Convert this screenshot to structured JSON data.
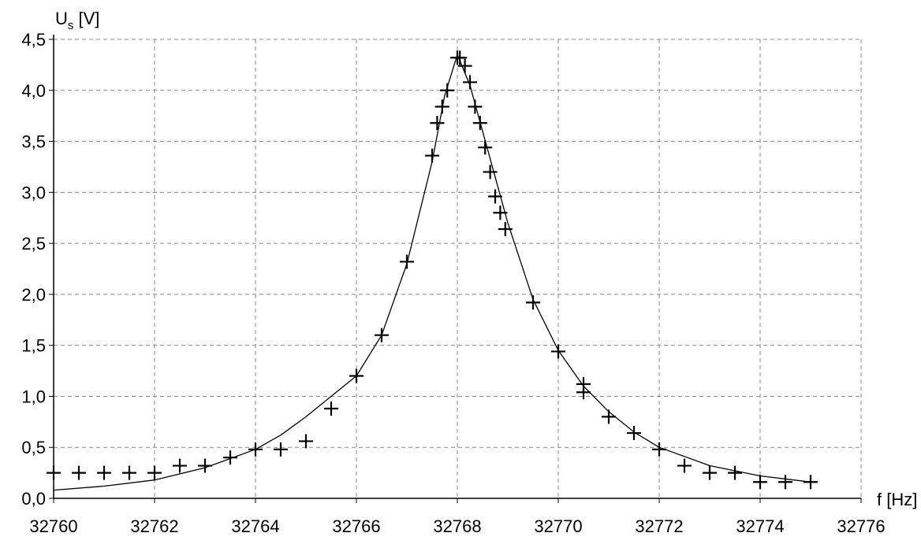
{
  "chart_data": {
    "type": "scatter",
    "title": "",
    "ylabel": {
      "main": "U",
      "sub": "s",
      "unit": " [V]"
    },
    "xlabel": "f [Hz]",
    "xlim": [
      32760,
      32776
    ],
    "ylim": [
      0,
      4.5
    ],
    "xticks": [
      32760,
      32762,
      32764,
      32766,
      32768,
      32770,
      32772,
      32774,
      32776
    ],
    "yticks": [
      0,
      0.5,
      1,
      1.5,
      2,
      2.5,
      3,
      3.5,
      4,
      4.5
    ],
    "ytick_labels": [
      "0,0",
      "0,5",
      "1,0",
      "1,5",
      "2,0",
      "2,5",
      "3,0",
      "3,5",
      "4,0",
      "4,5"
    ],
    "grid": true,
    "grid_style": "dashed",
    "colors": {
      "points": "#000000",
      "curve": "#000000",
      "grid": "#888888",
      "axes": "#000000"
    },
    "series": [
      {
        "marker": "plus",
        "x": [
          32760,
          32760.5,
          32761,
          32761.5,
          32762,
          32762.5,
          32763,
          32763.5,
          32764,
          32764.5,
          32765,
          32765.5,
          32766,
          32766.5,
          32767,
          32767.5,
          32767.6,
          32767.7,
          32767.8,
          32768,
          32768.05,
          32768.15,
          32768.25,
          32768.35,
          32768.45,
          32768.55,
          32768.65,
          32768.75,
          32768.85,
          32768.95,
          32769.5,
          32770,
          32770.5,
          32770.5,
          32771,
          32771.5,
          32772,
          32772.5,
          32773,
          32773.5,
          32774,
          32774.5,
          32775
        ],
        "y": [
          0.25,
          0.25,
          0.25,
          0.25,
          0.25,
          0.32,
          0.32,
          0.4,
          0.48,
          0.48,
          0.56,
          0.88,
          1.2,
          1.6,
          2.32,
          3.36,
          3.68,
          3.84,
          4.0,
          4.32,
          4.32,
          4.24,
          4.08,
          3.84,
          3.68,
          3.44,
          3.2,
          2.96,
          2.8,
          2.64,
          1.92,
          1.44,
          1.12,
          1.04,
          0.8,
          0.64,
          0.48,
          0.32,
          0.25,
          0.25,
          0.16,
          0.16,
          0.16
        ]
      },
      {
        "line": "fit curve",
        "x": [
          32760,
          32761,
          32762,
          32763,
          32764,
          32764.5,
          32765,
          32765.5,
          32766,
          32766.5,
          32767,
          32767.5,
          32767.75,
          32768,
          32768.25,
          32768.5,
          32769,
          32769.5,
          32770,
          32770.5,
          32771,
          32771.5,
          32772,
          32773,
          32774,
          32775
        ],
        "y": [
          0.08,
          0.12,
          0.18,
          0.3,
          0.48,
          0.62,
          0.8,
          1.0,
          1.2,
          1.6,
          2.3,
          3.3,
          3.95,
          4.35,
          4.05,
          3.6,
          2.7,
          1.95,
          1.45,
          1.1,
          0.85,
          0.65,
          0.5,
          0.32,
          0.22,
          0.16
        ]
      }
    ]
  }
}
